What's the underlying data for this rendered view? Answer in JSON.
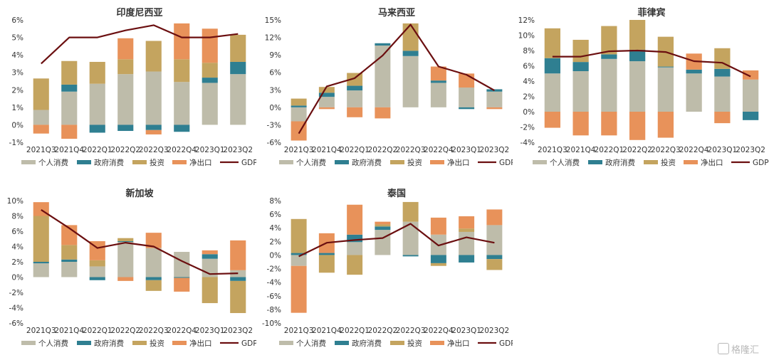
{
  "watermark": "格隆汇",
  "colors": {
    "个人消费": "#bebcaa",
    "政府消费": "#2f7f91",
    "投资": "#c4a45f",
    "净出口": "#e8925a",
    "GDP": "#6b0f10"
  },
  "chart_data": [
    {
      "type": "bar",
      "stacked": true,
      "title": "印度尼西亚",
      "categories": [
        "2021Q3",
        "2021Q4",
        "2022Q1",
        "2022Q2",
        "2022Q3",
        "2022Q4",
        "2023Q1",
        "2023Q2"
      ],
      "ylim": [
        -1,
        6
      ],
      "yticks": [
        -1,
        0,
        1,
        2,
        3,
        4,
        5,
        6
      ],
      "yticklabels": [
        "-1%",
        "0%",
        "1%",
        "2%",
        "3%",
        "4%",
        "5%",
        "6%"
      ],
      "series": [
        {
          "name": "个人消费",
          "values": [
            0.85,
            1.9,
            2.35,
            2.9,
            3.05,
            2.45,
            2.4,
            2.9
          ]
        },
        {
          "name": "政府消费",
          "values": [
            0,
            0.4,
            -0.45,
            -0.35,
            -0.3,
            -0.4,
            0.3,
            0.7
          ]
        },
        {
          "name": "投资",
          "values": [
            1.8,
            1.35,
            1.25,
            0.85,
            1.75,
            1.3,
            0.85,
            1.55
          ]
        },
        {
          "name": "净出口",
          "values": [
            -0.5,
            -0.8,
            0,
            1.2,
            -0.25,
            2.05,
            1.95,
            0
          ]
        }
      ],
      "line": {
        "name": "GDP",
        "values": [
          3.5,
          5.0,
          5.0,
          5.4,
          5.7,
          5.0,
          5.0,
          5.2
        ]
      },
      "legend": [
        "个人消费",
        "政府消费",
        "投资",
        "净出口",
        "GDP"
      ]
    },
    {
      "type": "bar",
      "stacked": true,
      "title": "马来西亚",
      "categories": [
        "2021Q3",
        "2021Q4",
        "2022Q1",
        "2022Q2",
        "2022Q3",
        "2022Q4",
        "2023Q1",
        "2023Q2"
      ],
      "ylim": [
        -6,
        15
      ],
      "yticks": [
        -6,
        -3,
        0,
        3,
        6,
        9,
        12,
        15
      ],
      "yticklabels": [
        "-6%",
        "-3%",
        "0%",
        "3%",
        "6%",
        "9%",
        "12%",
        "15%"
      ],
      "series": [
        {
          "name": "个人消费",
          "values": [
            -2.4,
            1.8,
            2.9,
            10.6,
            8.8,
            4.2,
            3.4,
            2.7
          ]
        },
        {
          "name": "政府消费",
          "values": [
            0.3,
            0.7,
            0.8,
            0.4,
            0.9,
            0.4,
            -0.3,
            0.4
          ]
        },
        {
          "name": "投资",
          "values": [
            1.2,
            1.0,
            2.2,
            0,
            4.7,
            0,
            0,
            0
          ]
        },
        {
          "name": "净出口",
          "values": [
            -3.3,
            -0.3,
            -1.7,
            -1.9,
            0,
            2.4,
            2.4,
            -0.3
          ]
        }
      ],
      "line": {
        "name": "GDP",
        "values": [
          -4.5,
          3.6,
          5.0,
          8.9,
          14.2,
          7.0,
          5.6,
          2.9
        ]
      },
      "legend": [
        "个人消费",
        "政府消费",
        "投资",
        "净出口",
        "GDP"
      ]
    },
    {
      "type": "bar",
      "stacked": true,
      "title": "菲律宾",
      "categories": [
        "2021Q3",
        "2021Q4",
        "2022Q1",
        "2022Q2",
        "2022Q3",
        "2022Q4",
        "2023Q1",
        "2023Q2"
      ],
      "ylim": [
        -4,
        12
      ],
      "yticks": [
        -4,
        -2,
        0,
        2,
        4,
        6,
        8,
        10,
        12
      ],
      "yticklabels": [
        "-4%",
        "-2%",
        "0%",
        "2%",
        "4%",
        "6%",
        "8%",
        "10%",
        "12%"
      ],
      "series": [
        {
          "name": "个人消费",
          "values": [
            5.0,
            5.3,
            6.9,
            6.6,
            5.8,
            5.0,
            4.6,
            4.2
          ]
        },
        {
          "name": "政府消费",
          "values": [
            2.0,
            1.2,
            0.6,
            1.5,
            0.1,
            0.5,
            1.0,
            -1.1
          ]
        },
        {
          "name": "投资",
          "values": [
            3.9,
            2.9,
            3.7,
            3.9,
            3.9,
            0,
            2.7,
            0
          ]
        },
        {
          "name": "净出口",
          "values": [
            -2.1,
            -3.1,
            -3.1,
            -3.7,
            -3.4,
            2.1,
            -1.5,
            1.2
          ]
        }
      ],
      "line": {
        "name": "GDP",
        "values": [
          7.2,
          7.2,
          7.9,
          8.0,
          7.8,
          6.6,
          6.4,
          4.6
        ]
      },
      "legend": [
        "个人消费",
        "政府消费",
        "投资",
        "净出口",
        "GDP"
      ]
    },
    {
      "type": "bar",
      "stacked": true,
      "title": "新加坡",
      "categories": [
        "2021Q3",
        "2021Q4",
        "2022Q1",
        "2022Q2",
        "2022Q3",
        "2022Q4",
        "2023Q1",
        "2023Q2"
      ],
      "ylim": [
        -6,
        10
      ],
      "yticks": [
        -6,
        -4,
        -2,
        0,
        2,
        4,
        6,
        8,
        10
      ],
      "yticklabels": [
        "-6%",
        "-4%",
        "-2%",
        "0%",
        "2%",
        "4%",
        "6%",
        "8%",
        "10%"
      ],
      "series": [
        {
          "name": "个人消费",
          "values": [
            1.8,
            2.0,
            1.4,
            4.6,
            3.8,
            3.3,
            2.4,
            0.9
          ]
        },
        {
          "name": "政府消费",
          "values": [
            0.2,
            0.3,
            -0.4,
            0.1,
            -0.4,
            -0.1,
            0.6,
            -0.5
          ]
        },
        {
          "name": "投资",
          "values": [
            6.0,
            1.9,
            0.8,
            0.4,
            -1.4,
            0,
            -3.4,
            -4.2
          ]
        },
        {
          "name": "净出口",
          "values": [
            1.8,
            2.6,
            2.5,
            -0.5,
            2.0,
            -1.8,
            0.5,
            3.9
          ]
        }
      ],
      "line": {
        "name": "GDP",
        "values": [
          8.8,
          6.4,
          3.8,
          4.5,
          4.0,
          2.1,
          0.4,
          0.5
        ]
      },
      "legend": [
        "个人消费",
        "政府消费",
        "投资",
        "净出口",
        "GDP"
      ]
    },
    {
      "type": "bar",
      "stacked": true,
      "title": "泰国",
      "categories": [
        "2021Q3",
        "2021Q4",
        "2022Q1",
        "2022Q2",
        "2022Q3",
        "2022Q4",
        "2023Q1",
        "2023Q2"
      ],
      "ylim": [
        -10,
        8
      ],
      "yticks": [
        -10,
        -8,
        -6,
        -4,
        -2,
        0,
        2,
        4,
        6,
        8
      ],
      "yticklabels": [
        "-10%",
        "-8%",
        "-6%",
        "-4%",
        "-2%",
        "0%",
        "2%",
        "4%",
        "6%",
        "8%"
      ],
      "series": [
        {
          "name": "个人消费",
          "values": [
            -1.6,
            0,
            1.9,
            3.7,
            4.9,
            3.0,
            3.4,
            4.4
          ]
        },
        {
          "name": "政府消费",
          "values": [
            0.3,
            0.3,
            1.1,
            0.5,
            -0.2,
            -1.2,
            -1.1,
            -0.6
          ]
        },
        {
          "name": "投资",
          "values": [
            5.0,
            -2.6,
            -2.9,
            0.3,
            2.9,
            -0.4,
            0.5,
            -1.6
          ]
        },
        {
          "name": "净出口",
          "values": [
            -6.9,
            2.9,
            4.4,
            0.4,
            0,
            2.5,
            1.8,
            2.3
          ]
        }
      ],
      "line": {
        "name": "GDP",
        "values": [
          -0.2,
          1.8,
          2.2,
          2.5,
          4.6,
          1.4,
          2.6,
          1.8
        ]
      },
      "legend": [
        "个人消费",
        "政府消费",
        "投资",
        "净出口",
        "GDP"
      ]
    }
  ]
}
